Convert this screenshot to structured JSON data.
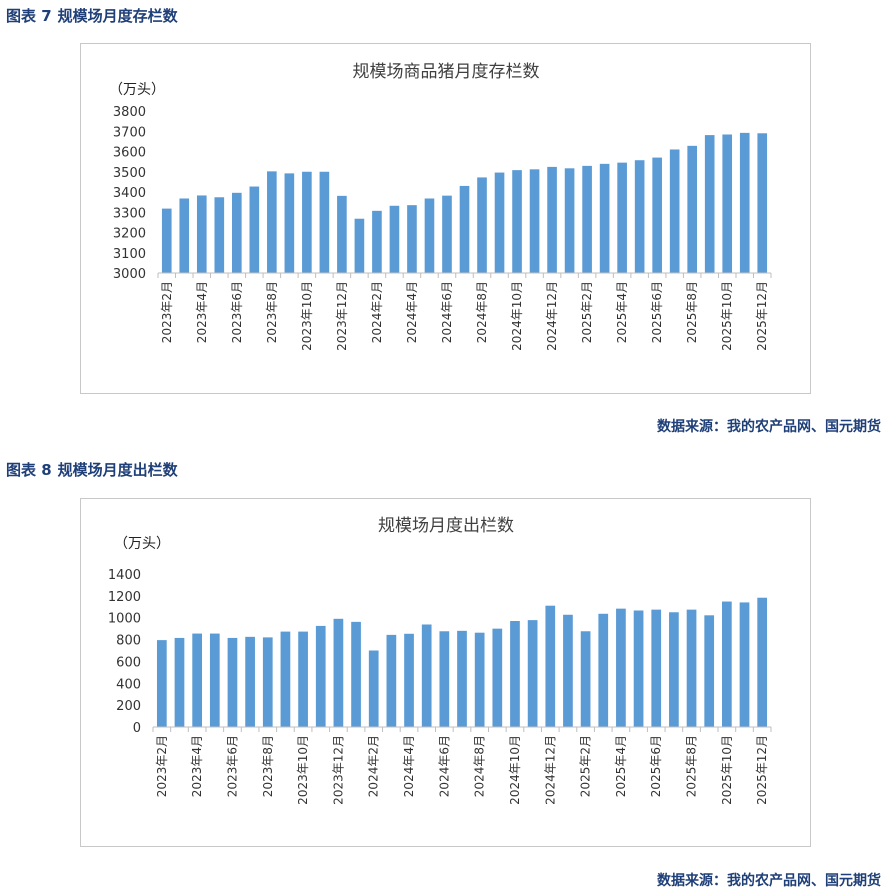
{
  "figure1": {
    "number": "图表 7",
    "heading": "规模场月度存栏数",
    "source": "数据来源：我的农产品网、国元期货"
  },
  "figure2": {
    "number": "图表 8",
    "heading": "规模场月度出栏数",
    "source": "数据来源：我的农产品网、国元期货"
  },
  "colors": {
    "bar": "#5b9bd5",
    "heading": "#1f3f78",
    "axis": "#bfbfbf"
  },
  "chart_data": [
    {
      "type": "bar",
      "title": "规模场商品猪月度存栏数",
      "ylabel": "（万头）",
      "ylim": [
        3000,
        3800
      ],
      "yticks": [
        3000,
        3100,
        3200,
        3300,
        3400,
        3500,
        3600,
        3700,
        3800
      ],
      "grid": false,
      "legend": "none",
      "categories": [
        "2023年2月",
        "2023年3月",
        "2023年4月",
        "2023年5月",
        "2023年6月",
        "2023年7月",
        "2023年8月",
        "2023年9月",
        "2023年10月",
        "2023年11月",
        "2023年12月",
        "2024年1月",
        "2024年2月",
        "2024年3月",
        "2024年4月",
        "2024年5月",
        "2024年6月",
        "2024年7月",
        "2024年8月",
        "2024年9月",
        "2024年10月",
        "2024年11月",
        "2024年12月",
        "2025年1月",
        "2025年2月",
        "2025年3月",
        "2025年4月",
        "2025年5月",
        "2025年6月",
        "2025年7月",
        "2025年8月",
        "2025年9月",
        "2025年10月",
        "2025年11月",
        "2025年12月"
      ],
      "shown_labels": [
        "2023年2月",
        "2023年4月",
        "2023年6月",
        "2023年8月",
        "2023年10月",
        "2023年12月",
        "2024年2月",
        "2024年4月",
        "2024年6月",
        "2024年8月",
        "2024年10月",
        "2024年12月",
        "2025年2月",
        "2025年4月",
        "2025年6月",
        "2025年8月",
        "2025年10月",
        "2025年12月"
      ],
      "values": [
        3318,
        3368,
        3383,
        3374,
        3396,
        3427,
        3502,
        3492,
        3500,
        3500,
        3381,
        3268,
        3307,
        3332,
        3335,
        3368,
        3382,
        3430,
        3472,
        3496,
        3508,
        3512,
        3524,
        3517,
        3529,
        3539,
        3545,
        3557,
        3570,
        3610,
        3628,
        3681,
        3684,
        3692,
        3690
      ]
    },
    {
      "type": "bar",
      "title": "规模场月度出栏数",
      "ylabel": "（万头）",
      "ylim": [
        0,
        1400
      ],
      "yticks": [
        0,
        200,
        400,
        600,
        800,
        1000,
        1200,
        1400
      ],
      "grid": false,
      "legend": "none",
      "categories": [
        "2023年2月",
        "2023年3月",
        "2023年4月",
        "2023年5月",
        "2023年6月",
        "2023年7月",
        "2023年8月",
        "2023年9月",
        "2023年10月",
        "2023年11月",
        "2023年12月",
        "2024年1月",
        "2024年2月",
        "2024年3月",
        "2024年4月",
        "2024年5月",
        "2024年6月",
        "2024年7月",
        "2024年8月",
        "2024年9月",
        "2024年10月",
        "2024年11月",
        "2024年12月",
        "2025年1月",
        "2025年2月",
        "2025年3月",
        "2025年4月",
        "2025年5月",
        "2025年6月",
        "2025年7月",
        "2025年8月",
        "2025年9月",
        "2025年10月",
        "2025年11月",
        "2025年12月"
      ],
      "shown_labels": [
        "2023年2月",
        "2023年4月",
        "2023年6月",
        "2023年8月",
        "2023年10月",
        "2023年12月",
        "2024年2月",
        "2024年4月",
        "2024年6月",
        "2024年8月",
        "2024年10月",
        "2024年12月",
        "2025年2月",
        "2025年4月",
        "2025年6月",
        "2025年8月",
        "2025年10月",
        "2025年12月"
      ],
      "values": [
        795,
        815,
        855,
        855,
        815,
        825,
        820,
        873,
        873,
        925,
        990,
        962,
        700,
        843,
        853,
        938,
        876,
        880,
        863,
        900,
        970,
        978,
        1110,
        1027,
        876,
        1036,
        1083,
        1066,
        1074,
        1050,
        1074,
        1022,
        1148,
        1140,
        1183
      ]
    }
  ]
}
